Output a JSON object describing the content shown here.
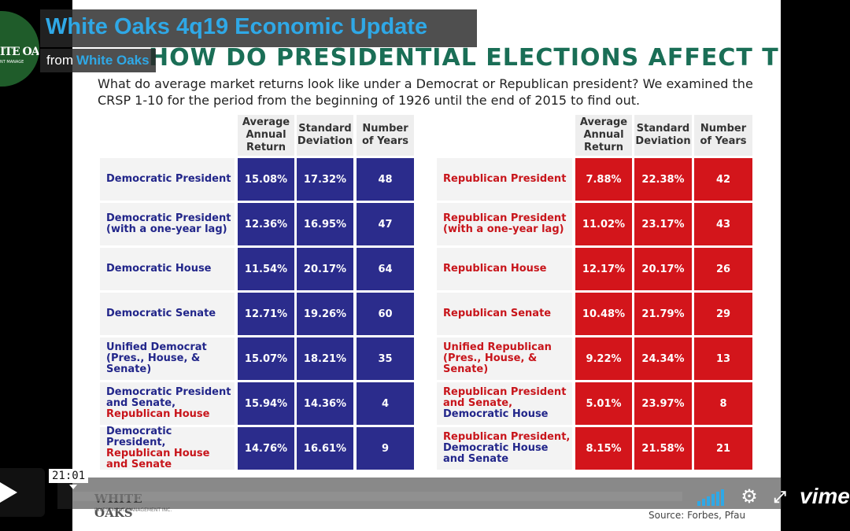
{
  "video": {
    "title": "White Oaks 4q19 Economic Update",
    "from_label": "from",
    "owner": "White Oaks",
    "time": "21:01",
    "progress": 0,
    "vimeo_label": "vimeo"
  },
  "logo": {
    "text": "ITE OA",
    "small": "NT MANAGE",
    "slide_text": "WHITE OAKS",
    "slide_small": "INVESTMENT MANAGEMENT INC."
  },
  "slide": {
    "title": "HOW DO PRESIDENTIAL ELECTIONS AFFECT THE MARKETS?",
    "subtitle": "What do average market returns look like under a Democrat or Republican president? We examined the CRSP 1-10 for the period from the beginning of 1926 until the end of 2015 to find out.",
    "source": "Source: Forbes, Pfau",
    "headers": {
      "avg_return": "Average Annual Return",
      "std_dev": "Standard Deviation",
      "years": "Number of Years"
    },
    "democratic": [
      {
        "label": "Democratic President",
        "ret": "15.08%",
        "sd": "17.32%",
        "n": "48"
      },
      {
        "label": "Democratic President (with a one-year lag)",
        "ret": "12.36%",
        "sd": "16.95%",
        "n": "47"
      },
      {
        "label": "Democratic House",
        "ret": "11.54%",
        "sd": "20.17%",
        "n": "64"
      },
      {
        "label": "Democratic Senate",
        "ret": "12.71%",
        "sd": "19.26%",
        "n": "60"
      },
      {
        "label": "Unified Democrat (Pres., House, & Senate)",
        "ret": "15.07%",
        "sd": "18.21%",
        "n": "35"
      },
      {
        "label_a": "Democratic President and Senate,",
        "label_b": "Republican House",
        "ret": "15.94%",
        "sd": "14.36%",
        "n": "4"
      },
      {
        "label_a": "Democratic President,",
        "label_b": "Republican House and Senate",
        "ret": "14.76%",
        "sd": "16.61%",
        "n": "9"
      }
    ],
    "republican": [
      {
        "label": "Republican President",
        "ret": "7.88%",
        "sd": "22.38%",
        "n": "42"
      },
      {
        "label": "Republican President (with a one-year lag)",
        "ret": "11.02%",
        "sd": "23.17%",
        "n": "43"
      },
      {
        "label": "Republican House",
        "ret": "12.17%",
        "sd": "20.17%",
        "n": "26"
      },
      {
        "label": "Republican Senate",
        "ret": "10.48%",
        "sd": "21.79%",
        "n": "29"
      },
      {
        "label": "Unified Republican (Pres., House, & Senate)",
        "ret": "9.22%",
        "sd": "24.34%",
        "n": "13"
      },
      {
        "label_a": "Republican President and Senate,",
        "label_b": "Democratic House",
        "ret": "5.01%",
        "sd": "23.97%",
        "n": "8"
      },
      {
        "label_a": "Republican President,",
        "label_b": "Democratic House and Senate",
        "ret": "8.15%",
        "sd": "21.58%",
        "n": "21"
      }
    ]
  }
}
